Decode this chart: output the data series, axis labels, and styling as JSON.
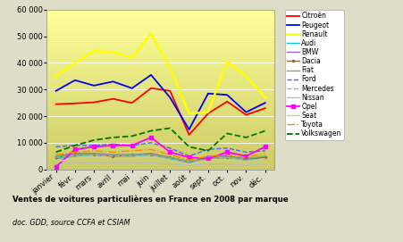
{
  "months": [
    "janvier",
    "févr.",
    "mars",
    "avril",
    "mai",
    "juin",
    "juillet",
    "août",
    "sept.",
    "oct.",
    "nov.",
    "déc."
  ],
  "series": {
    "Citroën": [
      24500,
      24800,
      25200,
      26500,
      25000,
      30500,
      29500,
      13000,
      21000,
      25500,
      20500,
      23000
    ],
    "Peugeot": [
      29500,
      33500,
      31500,
      33000,
      30500,
      35500,
      27000,
      15000,
      28500,
      28000,
      21500,
      25000
    ],
    "Renault": [
      35000,
      40000,
      44500,
      44000,
      42000,
      51000,
      38000,
      21000,
      21500,
      40500,
      35000,
      27000
    ],
    "Audi": [
      4000,
      5000,
      5500,
      5000,
      5000,
      5500,
      4000,
      2500,
      4500,
      4500,
      3500,
      4000
    ],
    "BMW": [
      5000,
      6000,
      6000,
      5500,
      5500,
      6000,
      4500,
      2500,
      5000,
      5000,
      4000,
      4500
    ],
    "Dacia": [
      4500,
      5500,
      5500,
      5000,
      5500,
      5500,
      4500,
      3000,
      4000,
      4500,
      4000,
      4500
    ],
    "Fiat": [
      5000,
      5500,
      5500,
      5500,
      5500,
      5500,
      4500,
      3000,
      4000,
      4500,
      4000,
      5000
    ],
    "Ford": [
      8500,
      9000,
      9000,
      9500,
      9000,
      10000,
      8000,
      5000,
      7500,
      8000,
      6500,
      7000
    ],
    "Mercedes": [
      4500,
      5000,
      5500,
      5000,
      5000,
      5500,
      4000,
      2500,
      4000,
      4500,
      3500,
      4000
    ],
    "Nissan": [
      2000,
      2500,
      2500,
      2500,
      2500,
      2500,
      2000,
      1500,
      2000,
      2000,
      1500,
      2000
    ],
    "Opel": [
      1000,
      7500,
      8500,
      9000,
      9000,
      12000,
      6500,
      4500,
      4000,
      6500,
      5000,
      8500
    ],
    "Seat": [
      3000,
      4000,
      4500,
      4000,
      4000,
      4500,
      3500,
      2000,
      3000,
      3500,
      3000,
      4000
    ],
    "Toyota": [
      5500,
      6500,
      7000,
      6500,
      7000,
      7500,
      5500,
      3500,
      5000,
      5500,
      4500,
      6000
    ],
    "Volkswagen": [
      6500,
      9000,
      11000,
      12000,
      12500,
      14500,
      15500,
      8500,
      7000,
      13500,
      12000,
      14500
    ]
  },
  "styles": {
    "Citroën": {
      "color": "#ff0000",
      "linestyle": "-",
      "marker": null,
      "markersize": 0,
      "linewidth": 1.3
    },
    "Peugeot": {
      "color": "#0000ff",
      "linestyle": "-",
      "marker": null,
      "markersize": 0,
      "linewidth": 1.3
    },
    "Renault": {
      "color": "#ffff00",
      "linestyle": "-",
      "marker": null,
      "markersize": 0,
      "linewidth": 1.8
    },
    "Audi": {
      "color": "#00cccc",
      "linestyle": "-",
      "marker": null,
      "markersize": 0,
      "linewidth": 1.0
    },
    "BMW": {
      "color": "#9966cc",
      "linestyle": "-",
      "marker": null,
      "markersize": 0,
      "linewidth": 1.0
    },
    "Dacia": {
      "color": "#996633",
      "linestyle": "-",
      "marker": ".",
      "markersize": 3,
      "linewidth": 1.0
    },
    "Fiat": {
      "color": "#66bb66",
      "linestyle": "-",
      "marker": null,
      "markersize": 0,
      "linewidth": 1.0
    },
    "Ford": {
      "color": "#4466ff",
      "linestyle": "--",
      "marker": null,
      "markersize": 0,
      "linewidth": 1.0
    },
    "Mercedes": {
      "color": "#aaaaaa",
      "linestyle": "--",
      "marker": null,
      "markersize": 0,
      "linewidth": 1.0
    },
    "Nissan": {
      "color": "#bbbbbb",
      "linestyle": "-",
      "marker": null,
      "markersize": 0,
      "linewidth": 1.0
    },
    "Opel": {
      "color": "#ff00ff",
      "linestyle": "-",
      "marker": "s",
      "markersize": 3,
      "linewidth": 1.3
    },
    "Seat": {
      "color": "#cccc99",
      "linestyle": "-",
      "marker": null,
      "markersize": 0,
      "linewidth": 1.0
    },
    "Toyota": {
      "color": "#ff8800",
      "linestyle": "-.",
      "marker": null,
      "markersize": 0,
      "linewidth": 1.0
    },
    "Volkswagen": {
      "color": "#007700",
      "linestyle": "--",
      "marker": null,
      "markersize": 0,
      "linewidth": 1.3
    }
  },
  "ylim": [
    0,
    60000
  ],
  "yticks": [
    0,
    10000,
    20000,
    30000,
    40000,
    50000,
    60000
  ],
  "title": "Ventes de voitures particulières en France en 2008 par marque",
  "subtitle": "doc. GDD, source CCFA et CSIAM",
  "bg_outer": "#ddddc8",
  "bg_inner_top": "#ffff99",
  "bg_inner_bottom": "#cccc66",
  "legend_fontsize": 5.5,
  "axis_fontsize": 6.0
}
